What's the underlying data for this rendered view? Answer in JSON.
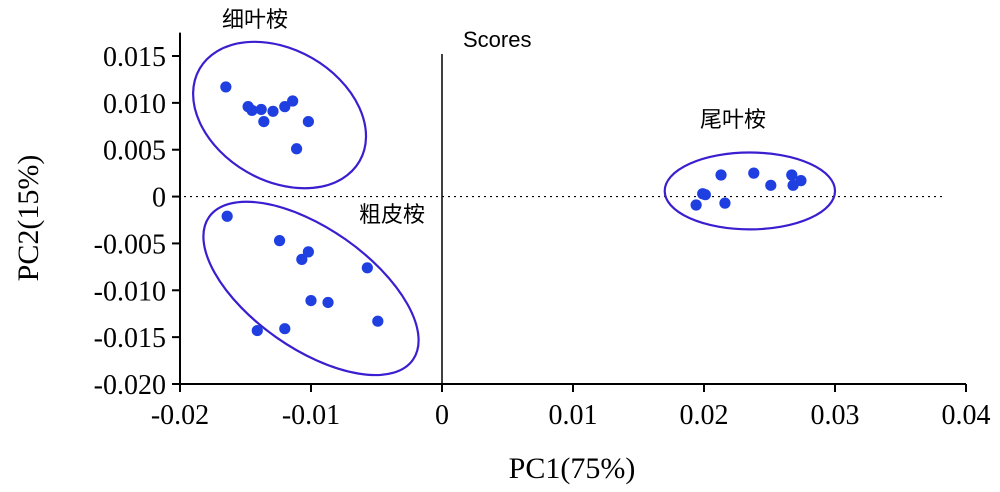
{
  "chart_data": {
    "type": "scatter",
    "title": "Scores",
    "xlabel": "PC1(75%)",
    "ylabel": "PC2(15%)",
    "xlim": [
      -0.02,
      0.04
    ],
    "ylim": [
      -0.02,
      0.0175
    ],
    "xticks": [
      -0.02,
      -0.01,
      0,
      0.01,
      0.02,
      0.03,
      0.04
    ],
    "xtick_labels": [
      "-0.02",
      "-0.01",
      "0",
      "0.01",
      "0.02",
      "0.03",
      "0.04"
    ],
    "yticks": [
      0.015,
      0.01,
      0.005,
      0,
      -0.005,
      -0.01,
      -0.015,
      -0.02
    ],
    "ytick_labels": [
      "0.015",
      "0.010",
      "0.005",
      "0",
      "-0.005",
      "-0.010",
      "-0.015",
      "-0.020"
    ],
    "point_color": "#1f3fe0",
    "ellipse_color": "#3a1fd0",
    "groups": [
      {
        "name": "细叶桉",
        "points": [
          {
            "x": -0.0165,
            "y": 0.0117
          },
          {
            "x": -0.0148,
            "y": 0.0096
          },
          {
            "x": -0.0145,
            "y": 0.0092
          },
          {
            "x": -0.0138,
            "y": 0.0093
          },
          {
            "x": -0.0136,
            "y": 0.008
          },
          {
            "x": -0.0129,
            "y": 0.0091
          },
          {
            "x": -0.012,
            "y": 0.0096
          },
          {
            "x": -0.0114,
            "y": 0.0102
          },
          {
            "x": -0.0111,
            "y": 0.0051
          },
          {
            "x": -0.0102,
            "y": 0.008
          }
        ]
      },
      {
        "name": "粗皮桉",
        "points": [
          {
            "x": -0.0164,
            "y": -0.0021
          },
          {
            "x": -0.0141,
            "y": -0.0143
          },
          {
            "x": -0.0124,
            "y": -0.0047
          },
          {
            "x": -0.012,
            "y": -0.0141
          },
          {
            "x": -0.0107,
            "y": -0.0067
          },
          {
            "x": -0.0102,
            "y": -0.0059
          },
          {
            "x": -0.01,
            "y": -0.0111
          },
          {
            "x": -0.0087,
            "y": -0.0113
          },
          {
            "x": -0.0057,
            "y": -0.0076
          },
          {
            "x": -0.0049,
            "y": -0.0133
          }
        ]
      },
      {
        "name": "尾叶桉",
        "points": [
          {
            "x": 0.0194,
            "y": -0.0009
          },
          {
            "x": 0.0199,
            "y": 0.0003
          },
          {
            "x": 0.0201,
            "y": 0.0002
          },
          {
            "x": 0.0213,
            "y": 0.0023
          },
          {
            "x": 0.0216,
            "y": -0.0007
          },
          {
            "x": 0.0238,
            "y": 0.0025
          },
          {
            "x": 0.0251,
            "y": 0.0012
          },
          {
            "x": 0.0267,
            "y": 0.0023
          },
          {
            "x": 0.0268,
            "y": 0.0012
          },
          {
            "x": 0.0274,
            "y": 0.0017
          }
        ]
      }
    ],
    "ellipses": [
      {
        "group": "细叶桉",
        "cx": -0.0124,
        "cy": 0.0087,
        "rx": 0.00705,
        "ry": 0.007,
        "rotate_deg": 30
      },
      {
        "group": "粗皮桉",
        "cx": -0.01,
        "cy": -0.0098,
        "rx": 0.0095,
        "ry": 0.0064,
        "rotate_deg": 35
      },
      {
        "group": "尾叶桉",
        "cx": 0.0235,
        "cy": 0.0006,
        "rx": 0.0065,
        "ry": 0.0041,
        "rotate_deg": 0
      }
    ],
    "reference_lines": {
      "vertical_at_x": 0,
      "horizontal_dotted_at_y": 0
    }
  }
}
